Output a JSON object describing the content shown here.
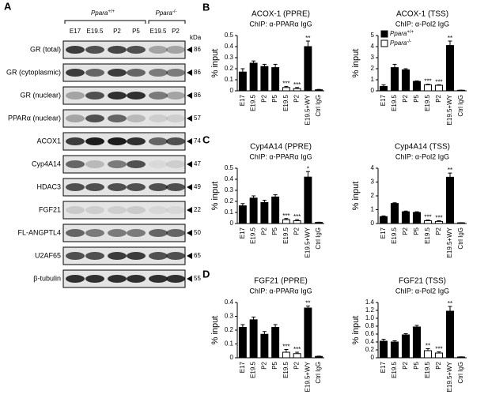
{
  "panel_a": {
    "label": "A",
    "groups": [
      {
        "gene": "Ppara",
        "genotype": "+/+"
      },
      {
        "gene": "Ppara",
        "genotype": "-/-"
      }
    ],
    "lanes": [
      "E17",
      "E19.5",
      "P2",
      "P5",
      "E19.5",
      "P2"
    ],
    "unit": "kDa",
    "rows": [
      {
        "label": "GR (total)",
        "kda": 86
      },
      {
        "label": "GR (cytoplasmic)",
        "kda": 86
      },
      {
        "label": "GR (nuclear)",
        "kda": 86
      },
      {
        "label": "PPARα (nuclear)",
        "kda": 57
      },
      {
        "label": "ACOX1",
        "kda": 74
      },
      {
        "label": "Cyp4A14",
        "kda": 47
      },
      {
        "label": "HDAC3",
        "kda": 49
      },
      {
        "label": "FGF21",
        "kda": 22
      },
      {
        "label": "FL-ANGPTL4",
        "kda": 50
      },
      {
        "label": "U2AF65",
        "kda": 65
      },
      {
        "label": "β-tubulin",
        "kda": 55
      }
    ]
  },
  "chart_data": [
    {
      "type": "bar",
      "panel": "B",
      "title": "ACOX-1 (PPRE)",
      "subtitle": "ChIP: α-PPARα IgG",
      "y_label": "% input",
      "categories": [
        "E17",
        "E19.5",
        "P2",
        "P5",
        "E19.5",
        "P2",
        "E19.5+WY",
        "Ctrl IgG"
      ],
      "values": [
        0.17,
        0.25,
        0.22,
        0.21,
        0.03,
        0.02,
        0.4,
        0.01
      ],
      "errors": [
        0.03,
        0.02,
        0.02,
        0.03,
        0.01,
        0.01,
        0.05,
        0.003
      ],
      "significance": [
        null,
        null,
        null,
        null,
        "***",
        "***",
        "**",
        null
      ],
      "colors": [
        "#000000",
        "#000000",
        "#000000",
        "#000000",
        "#ffffff",
        "#ffffff",
        "#000000",
        "#000000"
      ],
      "ylim": [
        0,
        0.5
      ],
      "yticks": [
        0,
        0.1,
        0.2,
        0.3,
        0.4,
        0.5
      ]
    },
    {
      "type": "bar",
      "title": "ACOX-1 (TSS)",
      "subtitle": "ChIP: α-Pol2 IgG",
      "y_label": "% input",
      "categories": [
        "E17",
        "E19.5",
        "P2",
        "P5",
        "E19.5",
        "P2",
        "E19.5+WY",
        "Ctrl IgG"
      ],
      "values": [
        0.4,
        2.1,
        1.9,
        0.85,
        0.55,
        0.5,
        4.1,
        0.05
      ],
      "errors": [
        0.15,
        0.3,
        0.1,
        0.05,
        0.05,
        0.05,
        0.4,
        0.01
      ],
      "significance": [
        null,
        null,
        null,
        null,
        "***",
        "***",
        "**",
        null
      ],
      "colors": [
        "#000000",
        "#000000",
        "#000000",
        "#000000",
        "#ffffff",
        "#ffffff",
        "#000000",
        "#000000"
      ],
      "ylim": [
        0,
        5
      ],
      "yticks": [
        0,
        1,
        2,
        3,
        4,
        5
      ],
      "legend_position": "upper left",
      "legend": [
        {
          "gene": "Ppara",
          "genotype": "+/+",
          "color": "#000000"
        },
        {
          "gene": "Ppara",
          "genotype": "-/-",
          "color": "#ffffff"
        }
      ]
    },
    {
      "type": "bar",
      "panel": "C",
      "title": "Cyp4A14 (PPRE)",
      "subtitle": "ChIP: α-PPARα IgG",
      "y_label": "% input",
      "categories": [
        "E17",
        "E19.5",
        "P2",
        "P5",
        "E19.5",
        "P2",
        "E19.5+WY",
        "Ctrl IgG"
      ],
      "values": [
        0.16,
        0.23,
        0.19,
        0.24,
        0.035,
        0.025,
        0.42,
        0.01
      ],
      "errors": [
        0.02,
        0.02,
        0.02,
        0.02,
        0.01,
        0.01,
        0.05,
        0.002
      ],
      "significance": [
        null,
        null,
        null,
        null,
        "***",
        "***",
        "*",
        null
      ],
      "colors": [
        "#000000",
        "#000000",
        "#000000",
        "#000000",
        "#ffffff",
        "#ffffff",
        "#000000",
        "#000000"
      ],
      "ylim": [
        0,
        0.5
      ],
      "yticks": [
        0,
        0.1,
        0.2,
        0.3,
        0.4,
        0.5
      ]
    },
    {
      "type": "bar",
      "title": "Cyp4A14 (TSS)",
      "subtitle": "ChIP: α-Pol2 IgG",
      "y_label": "% input",
      "categories": [
        "E17",
        "E19.5",
        "P2",
        "P5",
        "E19.5",
        "P2",
        "E19.5+WY",
        "Ctrl IgG"
      ],
      "values": [
        0.5,
        1.45,
        0.85,
        0.8,
        0.2,
        0.15,
        3.35,
        0.05
      ],
      "errors": [
        0.05,
        0.05,
        0.05,
        0.05,
        0.05,
        0.05,
        0.3,
        0.01
      ],
      "significance": [
        null,
        null,
        null,
        null,
        "***",
        "***",
        "**",
        null
      ],
      "colors": [
        "#000000",
        "#000000",
        "#000000",
        "#000000",
        "#ffffff",
        "#ffffff",
        "#000000",
        "#000000"
      ],
      "ylim": [
        0,
        4
      ],
      "yticks": [
        0,
        1,
        2,
        3,
        4
      ]
    },
    {
      "type": "bar",
      "panel": "D",
      "title": "FGF21 (PPRE)",
      "subtitle": "ChIP: α-PPARα IgG",
      "y_label": "% input",
      "categories": [
        "E17",
        "E19.5",
        "P2",
        "P5",
        "E19.5",
        "P2",
        "E19.5+WY",
        "Ctrl IgG"
      ],
      "values": [
        0.22,
        0.275,
        0.17,
        0.22,
        0.04,
        0.03,
        0.36,
        0.01
      ],
      "errors": [
        0.02,
        0.02,
        0.02,
        0.02,
        0.02,
        0.01,
        0.015,
        0.002
      ],
      "significance": [
        null,
        null,
        null,
        null,
        "***",
        "***",
        "**",
        null
      ],
      "colors": [
        "#000000",
        "#000000",
        "#000000",
        "#000000",
        "#ffffff",
        "#ffffff",
        "#000000",
        "#000000"
      ],
      "ylim": [
        0,
        0.4
      ],
      "yticks": [
        0,
        0.1,
        0.2,
        0.3,
        0.4
      ]
    },
    {
      "type": "bar",
      "title": "FGF21 (TSS)",
      "subtitle": "ChIP: α-Pol2 IgG",
      "y_label": "% input",
      "categories": [
        "E17",
        "E19.5",
        "P2",
        "P5",
        "E19.5",
        "P2",
        "E19.5+WY",
        "Ctrl IgG"
      ],
      "values": [
        0.42,
        0.4,
        0.58,
        0.78,
        0.18,
        0.12,
        1.18,
        0.02
      ],
      "errors": [
        0.05,
        0.03,
        0.03,
        0.04,
        0.05,
        0.03,
        0.12,
        0.005
      ],
      "significance": [
        null,
        null,
        null,
        null,
        "**",
        "***",
        "**",
        null
      ],
      "colors": [
        "#000000",
        "#000000",
        "#000000",
        "#000000",
        "#ffffff",
        "#ffffff",
        "#000000",
        "#000000"
      ],
      "ylim": [
        0,
        1.4
      ],
      "yticks": [
        0,
        0.2,
        0.4,
        0.6,
        0.8,
        {
          "value": 1,
          "label": "1.0"
        },
        1.2,
        1.4
      ]
    }
  ]
}
